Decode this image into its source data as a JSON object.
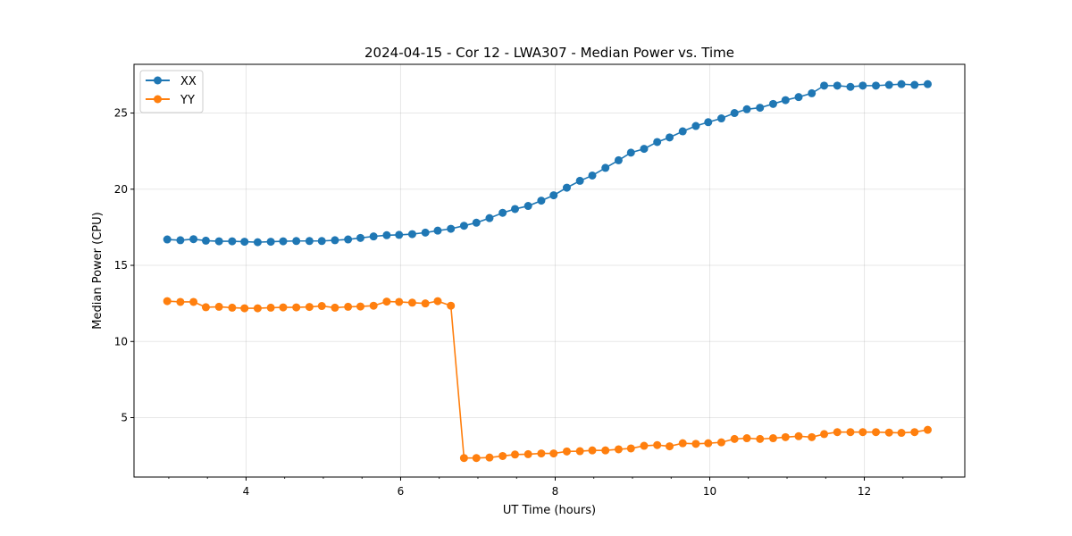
{
  "chart_data": {
    "type": "line",
    "title": "2024-04-15 - Cor 12 - LWA307 - Median Power vs. Time",
    "xlabel": "UT Time (hours)",
    "ylabel": "Median Power (CPU)",
    "xlim": [
      2.55,
      13.3
    ],
    "ylim": [
      1.1,
      28.2
    ],
    "xticks": [
      4,
      6,
      8,
      10,
      12
    ],
    "xtick_labels": [
      "4",
      "6",
      "8",
      "10",
      "12"
    ],
    "yticks": [
      5,
      10,
      15,
      20,
      25
    ],
    "ytick_labels": [
      "5",
      "10",
      "15",
      "20",
      "25"
    ],
    "grid": true,
    "legend_position": "top-left",
    "x": [
      2.98,
      3.15,
      3.32,
      3.48,
      3.65,
      3.82,
      3.98,
      4.15,
      4.32,
      4.48,
      4.65,
      4.82,
      4.98,
      5.15,
      5.32,
      5.48,
      5.65,
      5.82,
      5.98,
      6.15,
      6.32,
      6.48,
      6.65,
      6.82,
      6.98,
      7.15,
      7.32,
      7.48,
      7.65,
      7.82,
      7.98,
      8.15,
      8.32,
      8.48,
      8.65,
      8.82,
      8.98,
      9.15,
      9.32,
      9.48,
      9.65,
      9.82,
      9.98,
      10.15,
      10.32,
      10.48,
      10.65,
      10.82,
      10.98,
      11.15,
      11.32,
      11.48,
      11.65,
      11.82,
      11.98,
      12.15,
      12.32,
      12.48,
      12.65,
      12.82
    ],
    "series": [
      {
        "name": "XX",
        "color": "#1f77b4",
        "values": [
          16.7,
          16.65,
          16.72,
          16.62,
          16.58,
          16.58,
          16.55,
          16.52,
          16.55,
          16.58,
          16.6,
          16.6,
          16.6,
          16.65,
          16.7,
          16.8,
          16.9,
          16.98,
          17.0,
          17.05,
          17.15,
          17.28,
          17.4,
          17.6,
          17.8,
          18.1,
          18.45,
          18.7,
          18.9,
          19.25,
          19.6,
          20.1,
          20.55,
          20.9,
          21.4,
          21.9,
          22.4,
          22.65,
          23.1,
          23.4,
          23.8,
          24.15,
          24.4,
          24.65,
          25.0,
          25.25,
          25.35,
          25.6,
          25.85,
          26.05,
          26.3,
          26.8,
          26.8,
          26.72,
          26.8,
          26.8,
          26.85,
          26.9,
          26.85,
          26.9
        ]
      },
      {
        "name": "YY",
        "color": "#ff7f0e",
        "values": [
          12.65,
          12.6,
          12.6,
          12.25,
          12.28,
          12.22,
          12.18,
          12.18,
          12.22,
          12.24,
          12.24,
          12.27,
          12.33,
          12.22,
          12.28,
          12.3,
          12.35,
          12.62,
          12.6,
          12.55,
          12.5,
          12.65,
          12.35,
          2.35,
          2.35,
          2.38,
          2.48,
          2.58,
          2.6,
          2.65,
          2.65,
          2.78,
          2.8,
          2.85,
          2.85,
          2.92,
          2.98,
          3.15,
          3.2,
          3.12,
          3.32,
          3.28,
          3.32,
          3.38,
          3.6,
          3.65,
          3.6,
          3.65,
          3.72,
          3.78,
          3.72,
          3.92,
          4.05,
          4.05,
          4.05,
          4.05,
          4.02,
          4.0,
          4.05,
          4.2
        ]
      }
    ]
  }
}
